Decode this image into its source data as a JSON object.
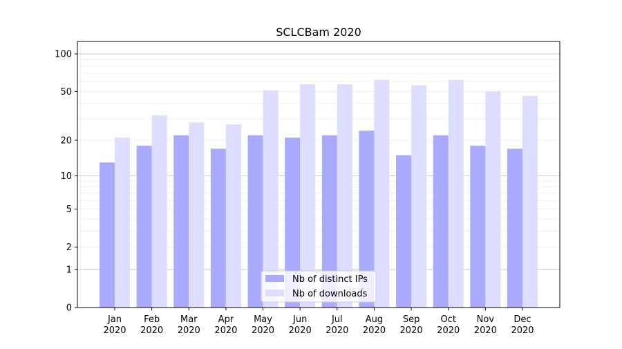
{
  "chart_data": {
    "type": "bar",
    "title": "SCLCBam 2020",
    "xlabel": "",
    "ylabel": "",
    "yscale": "log(1+y)",
    "ylim": [
      0,
      115
    ],
    "yticks": [
      0,
      1,
      2,
      5,
      10,
      20,
      50,
      100
    ],
    "categories": [
      "Jan\n2020",
      "Feb\n2020",
      "Mar\n2020",
      "Apr\n2020",
      "May\n2020",
      "Jun\n2020",
      "Jul\n2020",
      "Aug\n2020",
      "Sep\n2020",
      "Oct\n2020",
      "Nov\n2020",
      "Dec\n2020"
    ],
    "series": [
      {
        "name": "Nb of distinct IPs",
        "color": "#aaaaff",
        "values": [
          13,
          18,
          22,
          17,
          22,
          21,
          22,
          24,
          15,
          22,
          18,
          17
        ]
      },
      {
        "name": "Nb of downloads",
        "color": "#ddddff",
        "values": [
          21,
          32,
          28,
          27,
          51,
          57,
          57,
          62,
          56,
          62,
          50,
          46
        ]
      }
    ],
    "grid": true,
    "legend_position": "lower-center"
  }
}
